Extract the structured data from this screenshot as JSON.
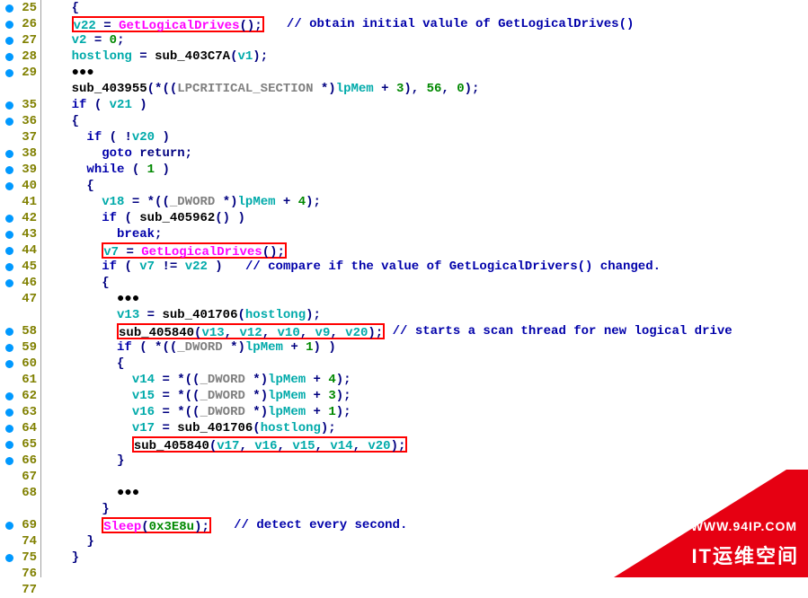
{
  "colors": {
    "breakpoint": "#0099ff",
    "lineno": "#808000",
    "keyword": "#0000aa",
    "type": "#0000aa",
    "func_known": "#ff00ff",
    "func_sub": "#000000",
    "var": "#00aaaa",
    "var_alt": "#00aaaa",
    "global": "#00aaaa",
    "param": "#00aaaa",
    "literal": "#008800",
    "cast": "#808080",
    "comment": "#808080",
    "comment_dark": "#0000aa",
    "punct": "#000080",
    "black": "#000000",
    "redbox": "#ff0000",
    "corner": "#e60012",
    "white": "#ffffff"
  },
  "corner": {
    "url": "WWW.94IP.COM",
    "brand": "IT运维空间"
  },
  "gutter": [
    {
      "n": "25",
      "bp": true
    },
    {
      "n": "26",
      "bp": true
    },
    {
      "n": "27",
      "bp": true
    },
    {
      "n": "28",
      "bp": true
    },
    {
      "n": "29",
      "bp": true
    },
    {
      "n": "...",
      "bp": false,
      "dots": true
    },
    {
      "n": "35",
      "bp": true
    },
    {
      "n": "36",
      "bp": true
    },
    {
      "n": "37",
      "bp": false
    },
    {
      "n": "38",
      "bp": true
    },
    {
      "n": "39",
      "bp": true
    },
    {
      "n": "40",
      "bp": true
    },
    {
      "n": "41",
      "bp": false
    },
    {
      "n": "42",
      "bp": true
    },
    {
      "n": "43",
      "bp": true
    },
    {
      "n": "44",
      "bp": true
    },
    {
      "n": "45",
      "bp": true
    },
    {
      "n": "46",
      "bp": true
    },
    {
      "n": "47",
      "bp": false
    },
    {
      "n": "...",
      "bp": false,
      "dots": true
    },
    {
      "n": "58",
      "bp": true
    },
    {
      "n": "59",
      "bp": true
    },
    {
      "n": "60",
      "bp": true
    },
    {
      "n": "61",
      "bp": false
    },
    {
      "n": "62",
      "bp": true
    },
    {
      "n": "63",
      "bp": true
    },
    {
      "n": "64",
      "bp": true
    },
    {
      "n": "65",
      "bp": true
    },
    {
      "n": "66",
      "bp": true
    },
    {
      "n": "67",
      "bp": false
    },
    {
      "n": "68",
      "bp": false
    },
    {
      "n": "...",
      "bp": false,
      "dots": true
    },
    {
      "n": "69",
      "bp": true
    },
    {
      "n": "74",
      "bp": false
    },
    {
      "n": "75",
      "bp": true
    },
    {
      "n": "76",
      "bp": false
    },
    {
      "n": "77",
      "bp": false
    }
  ],
  "code": [
    {
      "tokens": [
        {
          "t": "  ",
          "c": "black"
        },
        {
          "t": "{",
          "c": "punct"
        }
      ]
    },
    {
      "redbox_start": true,
      "tokens": [
        {
          "t": "  ",
          "c": "black"
        },
        {
          "box": true,
          "toks": [
            {
              "t": "v22",
              "c": "var"
            },
            {
              "t": " = ",
              "c": "punct"
            },
            {
              "t": "GetLogicalDrives",
              "c": "func_known"
            },
            {
              "t": "();",
              "c": "punct"
            }
          ]
        },
        {
          "t": "   ",
          "c": "black"
        },
        {
          "t": "// obtain initial valule of GetLogicalDrives()",
          "c": "comment_dark",
          "b": true
        }
      ]
    },
    {
      "tokens": [
        {
          "t": "  ",
          "c": "black"
        },
        {
          "t": "v2",
          "c": "var"
        },
        {
          "t": " = ",
          "c": "punct"
        },
        {
          "t": "0",
          "c": "literal"
        },
        {
          "t": ";",
          "c": "punct"
        }
      ]
    },
    {
      "tokens": [
        {
          "t": "  ",
          "c": "black"
        },
        {
          "t": "hostlong",
          "c": "var"
        },
        {
          "t": " = ",
          "c": "punct"
        },
        {
          "t": "sub_403C7A",
          "c": "black",
          "b": true
        },
        {
          "t": "(",
          "c": "punct"
        },
        {
          "t": "v1",
          "c": "var"
        },
        {
          "t": ");",
          "c": "punct"
        }
      ]
    },
    {
      "tokens": [
        {
          "t": "  ",
          "c": "black"
        },
        {
          "t": "●●●",
          "c": "black",
          "b": true
        }
      ]
    },
    {
      "tokens": [
        {
          "t": "  ",
          "c": "black"
        },
        {
          "t": "sub_403955",
          "c": "black",
          "b": true
        },
        {
          "t": "(*((",
          "c": "punct"
        },
        {
          "t": "LPCRITICAL_SECTION",
          "c": "cast"
        },
        {
          "t": " *)",
          "c": "punct"
        },
        {
          "t": "lpMem",
          "c": "var"
        },
        {
          "t": " + ",
          "c": "punct"
        },
        {
          "t": "3",
          "c": "literal"
        },
        {
          "t": "), ",
          "c": "punct"
        },
        {
          "t": "56",
          "c": "literal"
        },
        {
          "t": ", ",
          "c": "punct"
        },
        {
          "t": "0",
          "c": "literal"
        },
        {
          "t": ");",
          "c": "punct"
        }
      ]
    },
    {
      "tokens": [
        {
          "t": "  ",
          "c": "black"
        },
        {
          "t": "if",
          "c": "keyword"
        },
        {
          "t": " ( ",
          "c": "punct"
        },
        {
          "t": "v21",
          "c": "var"
        },
        {
          "t": " )",
          "c": "punct"
        }
      ]
    },
    {
      "tokens": [
        {
          "t": "  ",
          "c": "black"
        },
        {
          "t": "{",
          "c": "punct"
        }
      ]
    },
    {
      "tokens": [
        {
          "t": "    ",
          "c": "black"
        },
        {
          "t": "if",
          "c": "keyword"
        },
        {
          "t": " ( !",
          "c": "punct"
        },
        {
          "t": "v20",
          "c": "var"
        },
        {
          "t": " )",
          "c": "punct"
        }
      ]
    },
    {
      "tokens": [
        {
          "t": "      ",
          "c": "black"
        },
        {
          "t": "goto",
          "c": "keyword"
        },
        {
          "t": " return;",
          "c": "punct"
        }
      ]
    },
    {
      "tokens": [
        {
          "t": "    ",
          "c": "black"
        },
        {
          "t": "while",
          "c": "keyword"
        },
        {
          "t": " ( ",
          "c": "punct"
        },
        {
          "t": "1",
          "c": "literal"
        },
        {
          "t": " )",
          "c": "punct"
        }
      ]
    },
    {
      "tokens": [
        {
          "t": "    ",
          "c": "black"
        },
        {
          "t": "{",
          "c": "punct"
        }
      ]
    },
    {
      "tokens": [
        {
          "t": "      ",
          "c": "black"
        },
        {
          "t": "v18",
          "c": "var"
        },
        {
          "t": " = *((",
          "c": "punct"
        },
        {
          "t": "_DWORD",
          "c": "cast"
        },
        {
          "t": " *)",
          "c": "punct"
        },
        {
          "t": "lpMem",
          "c": "var"
        },
        {
          "t": " + ",
          "c": "punct"
        },
        {
          "t": "4",
          "c": "literal"
        },
        {
          "t": ");",
          "c": "punct"
        }
      ]
    },
    {
      "tokens": [
        {
          "t": "      ",
          "c": "black"
        },
        {
          "t": "if",
          "c": "keyword"
        },
        {
          "t": " ( ",
          "c": "punct"
        },
        {
          "t": "sub_405962",
          "c": "black",
          "b": true
        },
        {
          "t": "() )",
          "c": "punct"
        }
      ]
    },
    {
      "tokens": [
        {
          "t": "        ",
          "c": "black"
        },
        {
          "t": "break",
          "c": "keyword"
        },
        {
          "t": ";",
          "c": "punct"
        }
      ]
    },
    {
      "tokens": [
        {
          "t": "      ",
          "c": "black"
        },
        {
          "box": true,
          "toks": [
            {
              "t": "v7",
              "c": "var"
            },
            {
              "t": " = ",
              "c": "punct"
            },
            {
              "t": "GetLogicalDrives",
              "c": "func_known"
            },
            {
              "t": "();",
              "c": "punct"
            }
          ]
        }
      ]
    },
    {
      "tokens": [
        {
          "t": "      ",
          "c": "black"
        },
        {
          "t": "if",
          "c": "keyword"
        },
        {
          "t": " ( ",
          "c": "punct"
        },
        {
          "t": "v7",
          "c": "var"
        },
        {
          "t": " != ",
          "c": "punct"
        },
        {
          "t": "v22",
          "c": "var"
        },
        {
          "t": " )",
          "c": "punct"
        },
        {
          "t": "   ",
          "c": "black"
        },
        {
          "t": "// compare if the value of GetLogicalDrivers() changed.",
          "c": "comment_dark",
          "b": true
        }
      ]
    },
    {
      "tokens": [
        {
          "t": "      ",
          "c": "black"
        },
        {
          "t": "{",
          "c": "punct"
        }
      ]
    },
    {
      "tokens": [
        {
          "t": "        ",
          "c": "black"
        },
        {
          "t": "●●●",
          "c": "black",
          "b": true
        }
      ]
    },
    {
      "tokens": [
        {
          "t": "        ",
          "c": "black"
        },
        {
          "t": "v13",
          "c": "var"
        },
        {
          "t": " = ",
          "c": "punct"
        },
        {
          "t": "sub_401706",
          "c": "black",
          "b": true
        },
        {
          "t": "(",
          "c": "punct"
        },
        {
          "t": "hostlong",
          "c": "var"
        },
        {
          "t": ");",
          "c": "punct"
        }
      ]
    },
    {
      "tokens": [
        {
          "t": "        ",
          "c": "black"
        },
        {
          "box": true,
          "toks": [
            {
              "t": "sub_405840",
              "c": "black",
              "b": true
            },
            {
              "t": "(",
              "c": "punct"
            },
            {
              "t": "v13",
              "c": "var"
            },
            {
              "t": ", ",
              "c": "punct"
            },
            {
              "t": "v12",
              "c": "var"
            },
            {
              "t": ", ",
              "c": "punct"
            },
            {
              "t": "v10",
              "c": "var"
            },
            {
              "t": ", ",
              "c": "punct"
            },
            {
              "t": "v9",
              "c": "var"
            },
            {
              "t": ", ",
              "c": "punct"
            },
            {
              "t": "v20",
              "c": "var"
            },
            {
              "t": ");",
              "c": "punct"
            }
          ]
        },
        {
          "t": " ",
          "c": "black"
        },
        {
          "t": "// starts a scan thread for new logical drive",
          "c": "comment_dark",
          "b": true
        }
      ]
    },
    {
      "tokens": [
        {
          "t": "        ",
          "c": "black"
        },
        {
          "t": "if",
          "c": "keyword"
        },
        {
          "t": " ( *((",
          "c": "punct"
        },
        {
          "t": "_DWORD",
          "c": "cast"
        },
        {
          "t": " *)",
          "c": "punct"
        },
        {
          "t": "lpMem",
          "c": "var"
        },
        {
          "t": " + ",
          "c": "punct"
        },
        {
          "t": "1",
          "c": "literal"
        },
        {
          "t": ") )",
          "c": "punct"
        }
      ]
    },
    {
      "tokens": [
        {
          "t": "        ",
          "c": "black"
        },
        {
          "t": "{",
          "c": "punct"
        }
      ]
    },
    {
      "tokens": [
        {
          "t": "          ",
          "c": "black"
        },
        {
          "t": "v14",
          "c": "var"
        },
        {
          "t": " = *((",
          "c": "punct"
        },
        {
          "t": "_DWORD",
          "c": "cast"
        },
        {
          "t": " *)",
          "c": "punct"
        },
        {
          "t": "lpMem",
          "c": "var"
        },
        {
          "t": " + ",
          "c": "punct"
        },
        {
          "t": "4",
          "c": "literal"
        },
        {
          "t": ");",
          "c": "punct"
        }
      ]
    },
    {
      "tokens": [
        {
          "t": "          ",
          "c": "black"
        },
        {
          "t": "v15",
          "c": "var"
        },
        {
          "t": " = *((",
          "c": "punct"
        },
        {
          "t": "_DWORD",
          "c": "cast"
        },
        {
          "t": " *)",
          "c": "punct"
        },
        {
          "t": "lpMem",
          "c": "var"
        },
        {
          "t": " + ",
          "c": "punct"
        },
        {
          "t": "3",
          "c": "literal"
        },
        {
          "t": ");",
          "c": "punct"
        }
      ]
    },
    {
      "tokens": [
        {
          "t": "          ",
          "c": "black"
        },
        {
          "t": "v16",
          "c": "var"
        },
        {
          "t": " = *((",
          "c": "punct"
        },
        {
          "t": "_DWORD",
          "c": "cast"
        },
        {
          "t": " *)",
          "c": "punct"
        },
        {
          "t": "lpMem",
          "c": "var"
        },
        {
          "t": " + ",
          "c": "punct"
        },
        {
          "t": "1",
          "c": "literal"
        },
        {
          "t": ");",
          "c": "punct"
        }
      ]
    },
    {
      "tokens": [
        {
          "t": "          ",
          "c": "black"
        },
        {
          "t": "v17",
          "c": "var"
        },
        {
          "t": " = ",
          "c": "punct"
        },
        {
          "t": "sub_401706",
          "c": "black",
          "b": true
        },
        {
          "t": "(",
          "c": "punct"
        },
        {
          "t": "hostlong",
          "c": "var"
        },
        {
          "t": ");",
          "c": "punct"
        }
      ]
    },
    {
      "tokens": [
        {
          "t": "          ",
          "c": "black"
        },
        {
          "box": true,
          "toks": [
            {
              "t": "sub_405840",
              "c": "black",
              "b": true
            },
            {
              "t": "(",
              "c": "punct"
            },
            {
              "t": "v17",
              "c": "var"
            },
            {
              "t": ", ",
              "c": "punct"
            },
            {
              "t": "v16",
              "c": "var"
            },
            {
              "t": ", ",
              "c": "punct"
            },
            {
              "t": "v15",
              "c": "var"
            },
            {
              "t": ", ",
              "c": "punct"
            },
            {
              "t": "v14",
              "c": "var"
            },
            {
              "t": ", ",
              "c": "punct"
            },
            {
              "t": "v20",
              "c": "var"
            },
            {
              "t": ");",
              "c": "punct"
            }
          ]
        }
      ]
    },
    {
      "tokens": [
        {
          "t": "        ",
          "c": "black"
        },
        {
          "t": "}",
          "c": "punct"
        }
      ]
    },
    {
      "tokens": []
    },
    {
      "tokens": [
        {
          "t": "        ",
          "c": "black"
        },
        {
          "t": "●●●",
          "c": "black",
          "b": true
        }
      ]
    },
    {
      "tokens": [
        {
          "t": "      ",
          "c": "black"
        },
        {
          "t": "}",
          "c": "punct"
        }
      ]
    },
    {
      "tokens": [
        {
          "t": "      ",
          "c": "black"
        },
        {
          "box": true,
          "toks": [
            {
              "t": "Sleep",
              "c": "func_known"
            },
            {
              "t": "(",
              "c": "punct"
            },
            {
              "t": "0x3E8u",
              "c": "literal"
            },
            {
              "t": ");",
              "c": "punct"
            }
          ]
        },
        {
          "t": "   ",
          "c": "black"
        },
        {
          "t": "// detect every second.",
          "c": "comment_dark",
          "b": true
        }
      ]
    },
    {
      "tokens": [
        {
          "t": "    ",
          "c": "black"
        },
        {
          "t": "}",
          "c": "punct"
        }
      ]
    },
    {
      "tokens": [
        {
          "t": "  ",
          "c": "black"
        },
        {
          "t": "}",
          "c": "punct"
        }
      ]
    }
  ]
}
